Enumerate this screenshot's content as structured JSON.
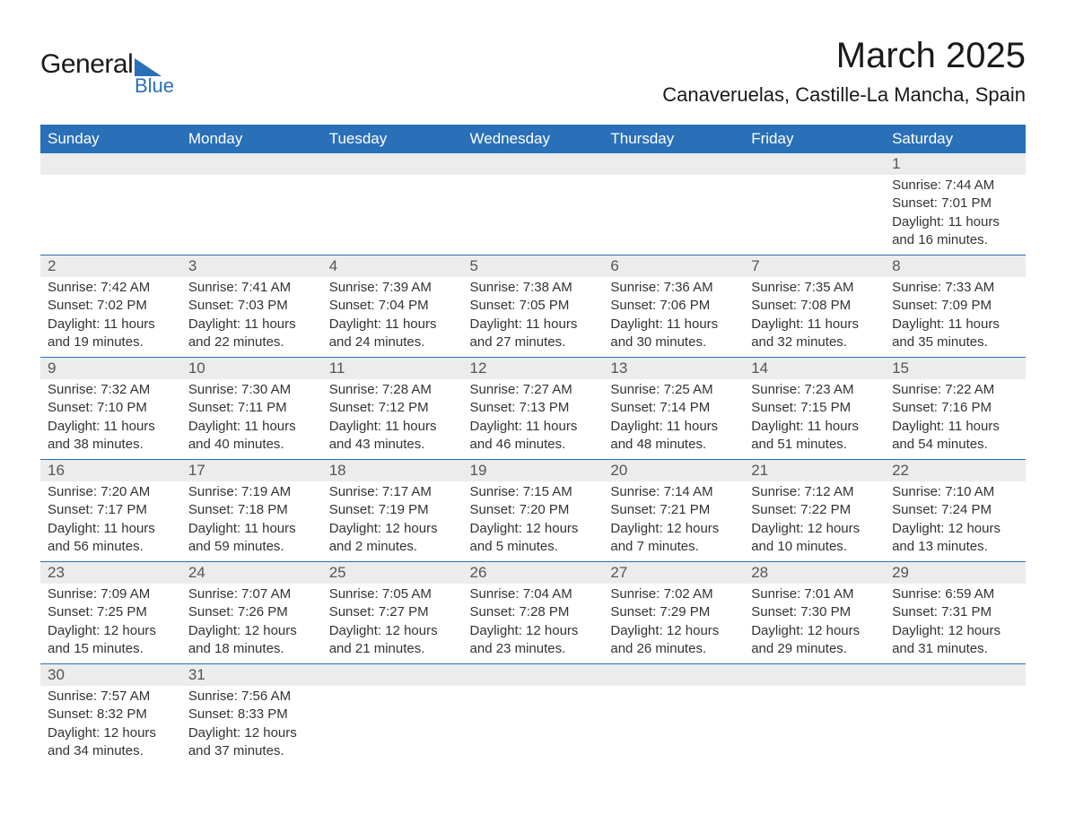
{
  "logo": {
    "text1": "General",
    "text2": "Blue"
  },
  "title": "March 2025",
  "location": "Canaveruelas, Castille-La Mancha, Spain",
  "colors": {
    "header_bg": "#2970b8",
    "header_text": "#ffffff",
    "daynum_bg": "#ececec",
    "row_border": "#2970b8",
    "body_text": "#333333",
    "logo_accent": "#2970b8"
  },
  "dayHeaders": [
    "Sunday",
    "Monday",
    "Tuesday",
    "Wednesday",
    "Thursday",
    "Friday",
    "Saturday"
  ],
  "weeks": [
    [
      null,
      null,
      null,
      null,
      null,
      null,
      {
        "n": "1",
        "sr": "Sunrise: 7:44 AM",
        "ss": "Sunset: 7:01 PM",
        "dl": "Daylight: 11 hours and 16 minutes."
      }
    ],
    [
      {
        "n": "2",
        "sr": "Sunrise: 7:42 AM",
        "ss": "Sunset: 7:02 PM",
        "dl": "Daylight: 11 hours and 19 minutes."
      },
      {
        "n": "3",
        "sr": "Sunrise: 7:41 AM",
        "ss": "Sunset: 7:03 PM",
        "dl": "Daylight: 11 hours and 22 minutes."
      },
      {
        "n": "4",
        "sr": "Sunrise: 7:39 AM",
        "ss": "Sunset: 7:04 PM",
        "dl": "Daylight: 11 hours and 24 minutes."
      },
      {
        "n": "5",
        "sr": "Sunrise: 7:38 AM",
        "ss": "Sunset: 7:05 PM",
        "dl": "Daylight: 11 hours and 27 minutes."
      },
      {
        "n": "6",
        "sr": "Sunrise: 7:36 AM",
        "ss": "Sunset: 7:06 PM",
        "dl": "Daylight: 11 hours and 30 minutes."
      },
      {
        "n": "7",
        "sr": "Sunrise: 7:35 AM",
        "ss": "Sunset: 7:08 PM",
        "dl": "Daylight: 11 hours and 32 minutes."
      },
      {
        "n": "8",
        "sr": "Sunrise: 7:33 AM",
        "ss": "Sunset: 7:09 PM",
        "dl": "Daylight: 11 hours and 35 minutes."
      }
    ],
    [
      {
        "n": "9",
        "sr": "Sunrise: 7:32 AM",
        "ss": "Sunset: 7:10 PM",
        "dl": "Daylight: 11 hours and 38 minutes."
      },
      {
        "n": "10",
        "sr": "Sunrise: 7:30 AM",
        "ss": "Sunset: 7:11 PM",
        "dl": "Daylight: 11 hours and 40 minutes."
      },
      {
        "n": "11",
        "sr": "Sunrise: 7:28 AM",
        "ss": "Sunset: 7:12 PM",
        "dl": "Daylight: 11 hours and 43 minutes."
      },
      {
        "n": "12",
        "sr": "Sunrise: 7:27 AM",
        "ss": "Sunset: 7:13 PM",
        "dl": "Daylight: 11 hours and 46 minutes."
      },
      {
        "n": "13",
        "sr": "Sunrise: 7:25 AM",
        "ss": "Sunset: 7:14 PM",
        "dl": "Daylight: 11 hours and 48 minutes."
      },
      {
        "n": "14",
        "sr": "Sunrise: 7:23 AM",
        "ss": "Sunset: 7:15 PM",
        "dl": "Daylight: 11 hours and 51 minutes."
      },
      {
        "n": "15",
        "sr": "Sunrise: 7:22 AM",
        "ss": "Sunset: 7:16 PM",
        "dl": "Daylight: 11 hours and 54 minutes."
      }
    ],
    [
      {
        "n": "16",
        "sr": "Sunrise: 7:20 AM",
        "ss": "Sunset: 7:17 PM",
        "dl": "Daylight: 11 hours and 56 minutes."
      },
      {
        "n": "17",
        "sr": "Sunrise: 7:19 AM",
        "ss": "Sunset: 7:18 PM",
        "dl": "Daylight: 11 hours and 59 minutes."
      },
      {
        "n": "18",
        "sr": "Sunrise: 7:17 AM",
        "ss": "Sunset: 7:19 PM",
        "dl": "Daylight: 12 hours and 2 minutes."
      },
      {
        "n": "19",
        "sr": "Sunrise: 7:15 AM",
        "ss": "Sunset: 7:20 PM",
        "dl": "Daylight: 12 hours and 5 minutes."
      },
      {
        "n": "20",
        "sr": "Sunrise: 7:14 AM",
        "ss": "Sunset: 7:21 PM",
        "dl": "Daylight: 12 hours and 7 minutes."
      },
      {
        "n": "21",
        "sr": "Sunrise: 7:12 AM",
        "ss": "Sunset: 7:22 PM",
        "dl": "Daylight: 12 hours and 10 minutes."
      },
      {
        "n": "22",
        "sr": "Sunrise: 7:10 AM",
        "ss": "Sunset: 7:24 PM",
        "dl": "Daylight: 12 hours and 13 minutes."
      }
    ],
    [
      {
        "n": "23",
        "sr": "Sunrise: 7:09 AM",
        "ss": "Sunset: 7:25 PM",
        "dl": "Daylight: 12 hours and 15 minutes."
      },
      {
        "n": "24",
        "sr": "Sunrise: 7:07 AM",
        "ss": "Sunset: 7:26 PM",
        "dl": "Daylight: 12 hours and 18 minutes."
      },
      {
        "n": "25",
        "sr": "Sunrise: 7:05 AM",
        "ss": "Sunset: 7:27 PM",
        "dl": "Daylight: 12 hours and 21 minutes."
      },
      {
        "n": "26",
        "sr": "Sunrise: 7:04 AM",
        "ss": "Sunset: 7:28 PM",
        "dl": "Daylight: 12 hours and 23 minutes."
      },
      {
        "n": "27",
        "sr": "Sunrise: 7:02 AM",
        "ss": "Sunset: 7:29 PM",
        "dl": "Daylight: 12 hours and 26 minutes."
      },
      {
        "n": "28",
        "sr": "Sunrise: 7:01 AM",
        "ss": "Sunset: 7:30 PM",
        "dl": "Daylight: 12 hours and 29 minutes."
      },
      {
        "n": "29",
        "sr": "Sunrise: 6:59 AM",
        "ss": "Sunset: 7:31 PM",
        "dl": "Daylight: 12 hours and 31 minutes."
      }
    ],
    [
      {
        "n": "30",
        "sr": "Sunrise: 7:57 AM",
        "ss": "Sunset: 8:32 PM",
        "dl": "Daylight: 12 hours and 34 minutes."
      },
      {
        "n": "31",
        "sr": "Sunrise: 7:56 AM",
        "ss": "Sunset: 8:33 PM",
        "dl": "Daylight: 12 hours and 37 minutes."
      },
      null,
      null,
      null,
      null,
      null
    ]
  ]
}
